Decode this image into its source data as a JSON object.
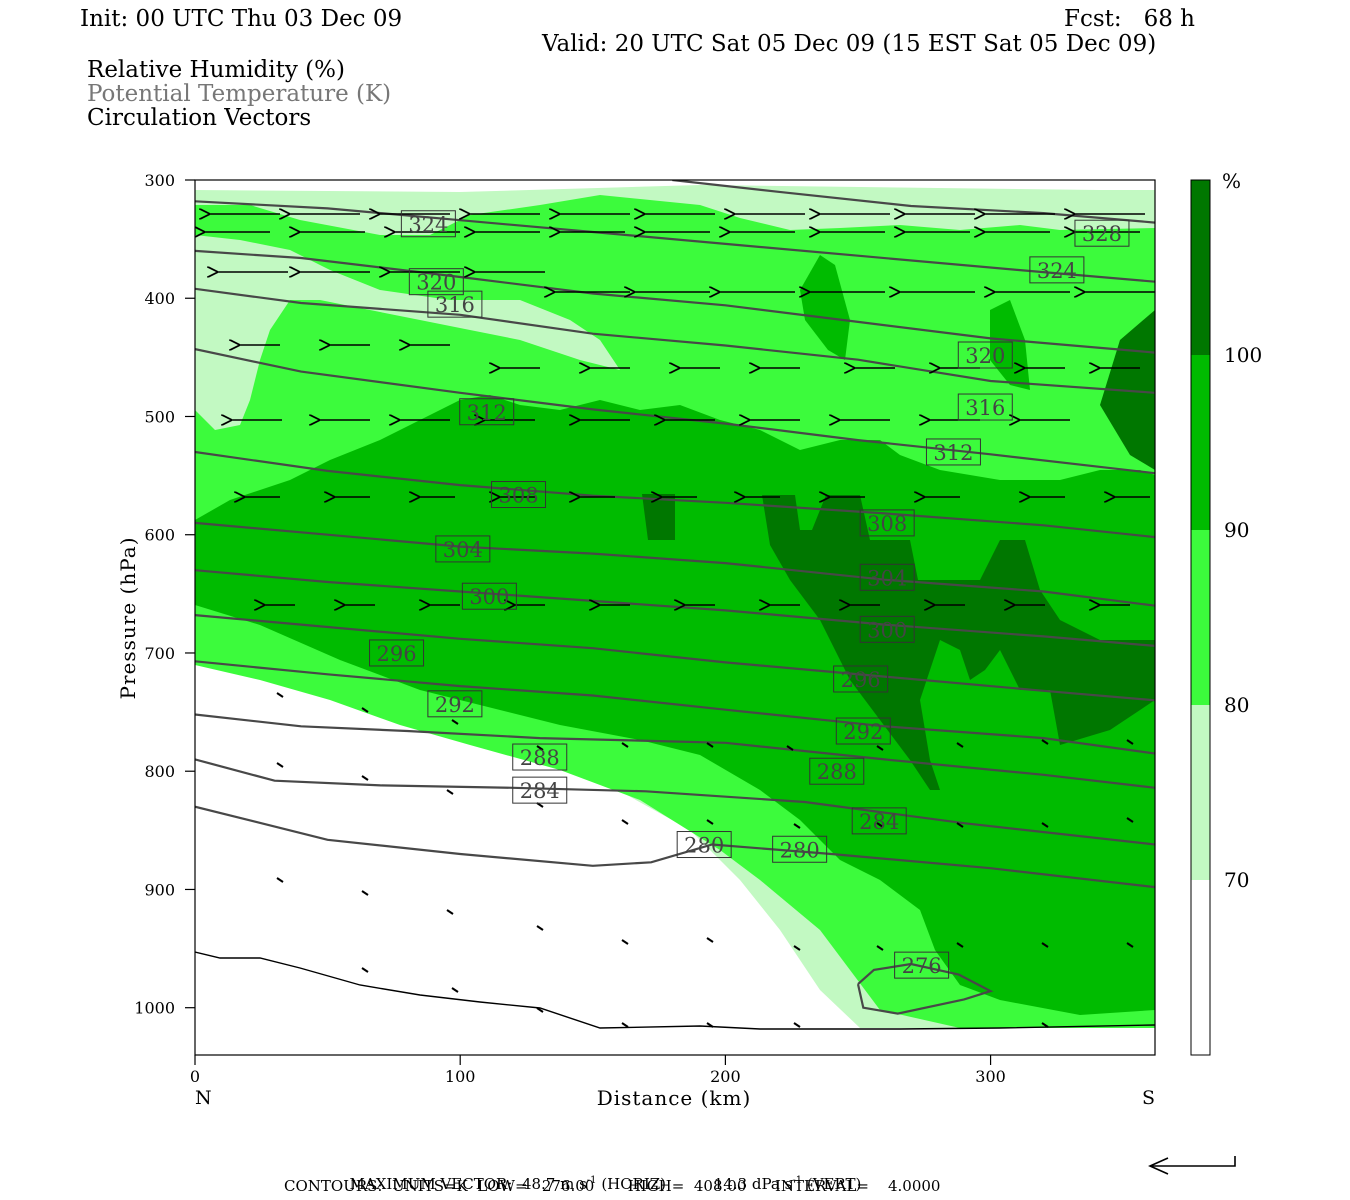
{
  "header": {
    "init": "Init: 00 UTC Thu 03 Dec 09",
    "fcst": "Fcst:   68 h",
    "valid": "Valid: 20 UTC Sat 05 Dec 09 (15 EST Sat 05 Dec 09)",
    "field1": "Relative Humidity (%)",
    "field2": "Potential Temperature (K)",
    "field3": "Circulation Vectors"
  },
  "footer": {
    "max_vector_label": "MAXIMUM VECTOR:",
    "horiz_value": "48.7 m s",
    "horiz_suffix": " (HORIZ)",
    "vert_value": "14.3 dPa s",
    "vert_suffix": " (VERT)",
    "exp": "-1",
    "contours": "CONTOURS:  UNITS=K  LOW=   276.00       HIGH=  408.00      INTERVAL=    4.0000"
  },
  "colors": {
    "rh_70_80": "#c2f9c2",
    "rh_80_90": "#3cfb3c",
    "rh_90_100": "#00bb00",
    "rh_100": "#007700",
    "theta_line": "#484848"
  },
  "chart_data": {
    "type": "cross-section",
    "xlabel": "Distance (km)",
    "ylabel": "Pressure (hPa)",
    "xlim": [
      0,
      362
    ],
    "ylim": [
      1040,
      300
    ],
    "x_ticks": [
      0,
      100,
      200,
      300
    ],
    "y_ticks": [
      300,
      400,
      500,
      600,
      700,
      800,
      900,
      1000
    ],
    "x_end_labels": {
      "left": "N",
      "right": "S"
    },
    "colorbar": {
      "unit": "%",
      "levels": [
        70,
        80,
        90,
        100
      ]
    },
    "theta_contours": [
      {
        "label": "276",
        "label_at": [
          274,
          964
        ],
        "points": [
          [
            250,
            980
          ],
          [
            256,
            968
          ],
          [
            270,
            963
          ],
          [
            288,
            972
          ],
          [
            300,
            986
          ],
          [
            290,
            993
          ],
          [
            265,
            1005
          ],
          [
            252,
            1000
          ],
          [
            250,
            980
          ]
        ]
      },
      {
        "label": "280",
        "label_at": [
          192,
          862
        ],
        "points": [
          [
            0,
            830
          ],
          [
            50,
            858
          ],
          [
            100,
            870
          ],
          [
            150,
            880
          ],
          [
            172,
            877
          ],
          [
            195,
            862
          ],
          [
            240,
            870
          ],
          [
            300,
            882
          ],
          [
            362,
            898
          ]
        ]
      },
      {
        "label": "280",
        "label_at": [
          228,
          866
        ]
      },
      {
        "label": "284",
        "label_at": [
          130,
          816
        ],
        "points": [
          [
            0,
            790
          ],
          [
            30,
            808
          ],
          [
            70,
            812
          ],
          [
            120,
            814
          ],
          [
            170,
            817
          ],
          [
            230,
            826
          ],
          [
            290,
            844
          ],
          [
            362,
            862
          ]
        ]
      },
      {
        "label": "284",
        "label_at": [
          258,
          842
        ]
      },
      {
        "label": "288",
        "label_at": [
          130,
          788
        ],
        "points": [
          [
            0,
            752
          ],
          [
            40,
            762
          ],
          [
            80,
            766
          ],
          [
            130,
            772
          ],
          [
            200,
            776
          ],
          [
            260,
            790
          ],
          [
            320,
            803
          ],
          [
            362,
            814
          ]
        ]
      },
      {
        "label": "288",
        "label_at": [
          242,
          800
        ]
      },
      {
        "label": "292",
        "label_at": [
          98,
          743
        ],
        "points": [
          [
            0,
            707
          ],
          [
            50,
            718
          ],
          [
            100,
            728
          ],
          [
            150,
            736
          ],
          [
            200,
            748
          ],
          [
            260,
            762
          ],
          [
            320,
            772
          ],
          [
            362,
            785
          ]
        ]
      },
      {
        "label": "292",
        "label_at": [
          252,
          766
        ]
      },
      {
        "label": "296",
        "label_at": [
          76,
          700
        ],
        "points": [
          [
            0,
            668
          ],
          [
            50,
            678
          ],
          [
            100,
            688
          ],
          [
            150,
            696
          ],
          [
            200,
            708
          ],
          [
            260,
            720
          ],
          [
            320,
            732
          ],
          [
            362,
            740
          ]
        ]
      },
      {
        "label": "296",
        "label_at": [
          251,
          722
        ]
      },
      {
        "label": "300",
        "label_at": [
          111,
          652
        ],
        "points": [
          [
            0,
            630
          ],
          [
            50,
            640
          ],
          [
            100,
            648
          ],
          [
            150,
            656
          ],
          [
            200,
            664
          ],
          [
            260,
            676
          ],
          [
            320,
            686
          ],
          [
            362,
            694
          ]
        ]
      },
      {
        "label": "300",
        "label_at": [
          261,
          680
        ]
      },
      {
        "label": "304",
        "label_at": [
          101,
          612
        ],
        "points": [
          [
            0,
            590
          ],
          [
            50,
            600
          ],
          [
            100,
            610
          ],
          [
            150,
            616
          ],
          [
            200,
            624
          ],
          [
            260,
            638
          ],
          [
            320,
            648
          ],
          [
            362,
            660
          ]
        ]
      },
      {
        "label": "304",
        "label_at": [
          261,
          636
        ]
      },
      {
        "label": "308",
        "label_at": [
          122,
          566
        ],
        "points": [
          [
            0,
            530
          ],
          [
            50,
            546
          ],
          [
            100,
            558
          ],
          [
            150,
            567
          ],
          [
            200,
            573
          ],
          [
            260,
            582
          ],
          [
            320,
            592
          ],
          [
            362,
            602
          ]
        ]
      },
      {
        "label": "308",
        "label_at": [
          261,
          590
        ]
      },
      {
        "label": "312",
        "label_at": [
          110,
          496
        ],
        "points": [
          [
            0,
            443
          ],
          [
            40,
            462
          ],
          [
            100,
            480
          ],
          [
            150,
            494
          ],
          [
            200,
            506
          ],
          [
            250,
            520
          ],
          [
            300,
            532
          ],
          [
            362,
            548
          ]
        ]
      },
      {
        "label": "312",
        "label_at": [
          286,
          530
        ]
      },
      {
        "label": "316",
        "label_at": [
          98,
          405
        ],
        "points": [
          [
            0,
            392
          ],
          [
            40,
            404
          ],
          [
            100,
            414
          ],
          [
            150,
            430
          ],
          [
            200,
            440
          ],
          [
            250,
            452
          ],
          [
            300,
            470
          ],
          [
            362,
            480
          ]
        ]
      },
      {
        "label": "316",
        "label_at": [
          298,
          492
        ]
      },
      {
        "label": "320",
        "label_at": [
          91,
          386
        ],
        "points": [
          [
            0,
            360
          ],
          [
            40,
            366
          ],
          [
            100,
            382
          ],
          [
            150,
            396
          ],
          [
            200,
            406
          ],
          [
            250,
            420
          ],
          [
            300,
            434
          ],
          [
            362,
            446
          ]
        ]
      },
      {
        "label": "320",
        "label_at": [
          298,
          448
        ]
      },
      {
        "label": "324",
        "label_at": [
          88,
          337
        ],
        "points": [
          [
            0,
            318
          ],
          [
            50,
            324
          ],
          [
            100,
            334
          ],
          [
            150,
            344
          ],
          [
            200,
            354
          ],
          [
            250,
            364
          ],
          [
            310,
            376
          ],
          [
            362,
            386
          ]
        ]
      },
      {
        "label": "324",
        "label_at": [
          325,
          376
        ]
      },
      {
        "label": "328",
        "label_at": [
          342,
          345
        ],
        "points": [
          [
            180,
            300
          ],
          [
            220,
            310
          ],
          [
            270,
            322
          ],
          [
            320,
            328
          ],
          [
            362,
            336
          ]
        ]
      }
    ]
  }
}
